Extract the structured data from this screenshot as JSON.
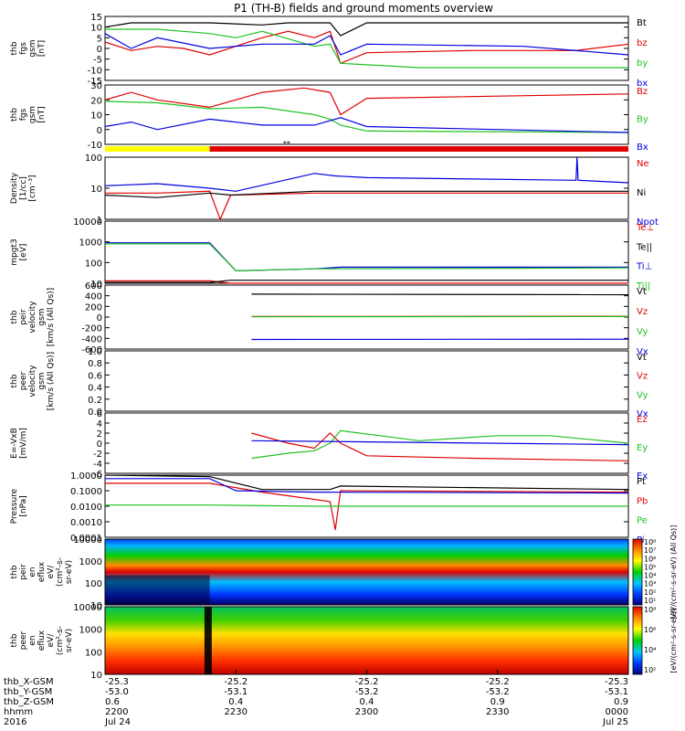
{
  "title": "P1 (TH-B) fields and ground moments overview",
  "colors": {
    "black": "#000000",
    "red": "#e00000",
    "green": "#22c322",
    "blue": "#0000e0",
    "yellow": "#ffff00"
  },
  "chart_data": {
    "type": "line",
    "title": "P1 (TH-B) fields and ground moments overview",
    "x_time_labels": [
      "2200",
      "2230",
      "2300",
      "2330",
      "0000"
    ],
    "x_date_labels": [
      "Jul 24",
      "",
      "",
      "",
      "Jul 25"
    ],
    "year_label": "2016",
    "orbit_rows": [
      {
        "label": "thb_X-GSM",
        "values": [
          "-25.3",
          "-25.2",
          "-25.2",
          "-25.2",
          "-25.3"
        ]
      },
      {
        "label": "thb_Y-GSM",
        "values": [
          "-53.0",
          "-53.1",
          "-53.2",
          "-53.2",
          "-53.1"
        ]
      },
      {
        "label": "thb_Z-GSM",
        "values": [
          "0.6",
          "0.4",
          "0.4",
          "0.9",
          "0.9"
        ]
      },
      {
        "label": "hhmm",
        "values": [
          "2200",
          "2230",
          "2300",
          "2330",
          "0000"
        ]
      },
      {
        "label": "2016",
        "values": [
          "Jul 24",
          "",
          "",
          "",
          "Jul 25"
        ]
      }
    ],
    "panels": [
      {
        "id": "fgs-gsm",
        "ylabel": [
          "thb",
          "fgs",
          "gsm",
          "[nT]"
        ],
        "yticks": [
          "15",
          "10",
          "5",
          "0",
          "-5",
          "-10",
          "-15"
        ],
        "legend": [
          "Bt",
          "bz",
          "by",
          "bx"
        ],
        "series": [
          {
            "name": "Bt",
            "x": [
              0,
              0.05,
              0.1,
              0.2,
              0.3,
              0.35,
              0.4,
              0.43,
              0.45,
              0.5,
              0.6,
              0.8,
              1.0
            ],
            "y": [
              10,
              12,
              12,
              12,
              11,
              12,
              12,
              12,
              6,
              12,
              12,
              12,
              12
            ]
          },
          {
            "name": "bz",
            "x": [
              0,
              0.05,
              0.1,
              0.15,
              0.2,
              0.3,
              0.35,
              0.4,
              0.43,
              0.45,
              0.5,
              0.7,
              0.9,
              1.0
            ],
            "y": [
              3,
              -1,
              1,
              0,
              -3,
              5,
              8,
              5,
              8,
              -7,
              -2,
              -1,
              -1,
              2
            ]
          },
          {
            "name": "by",
            "x": [
              0,
              0.05,
              0.1,
              0.2,
              0.25,
              0.3,
              0.4,
              0.43,
              0.45,
              0.6,
              0.8,
              1.0
            ],
            "y": [
              9,
              9,
              9,
              7,
              5,
              8,
              1,
              2,
              -7,
              -9,
              -9,
              -9
            ]
          },
          {
            "name": "bx",
            "x": [
              0,
              0.05,
              0.1,
              0.2,
              0.3,
              0.4,
              0.43,
              0.45,
              0.5,
              0.8,
              1.0
            ],
            "y": [
              7,
              0,
              5,
              0,
              2,
              2,
              6,
              -3,
              2,
              1,
              -3
            ]
          }
        ]
      },
      {
        "id": "fgs-gsm-2",
        "ylabel": [
          "thb",
          "fgs",
          "gsm",
          "[nT]"
        ],
        "yticks": [
          "30",
          "20",
          "10",
          "0",
          "-10"
        ],
        "legend": [
          "Bz",
          "By",
          "Bx"
        ],
        "series": [
          {
            "name": "Bz",
            "x": [
              0,
              0.05,
              0.1,
              0.2,
              0.3,
              0.38,
              0.43,
              0.45,
              0.5,
              1.0
            ],
            "y": [
              20,
              25,
              20,
              15,
              25,
              28,
              25,
              10,
              21,
              24
            ]
          },
          {
            "name": "By",
            "x": [
              0,
              0.1,
              0.2,
              0.3,
              0.4,
              0.43,
              0.45,
              0.5,
              1.0
            ],
            "y": [
              19,
              18,
              14,
              15,
              10,
              7,
              3,
              -1,
              -2
            ]
          },
          {
            "name": "Bx",
            "x": [
              0,
              0.05,
              0.1,
              0.2,
              0.3,
              0.4,
              0.45,
              0.5,
              1.0
            ],
            "y": [
              2,
              5,
              0,
              7,
              3,
              3,
              8,
              2,
              -2
            ]
          }
        ]
      },
      {
        "id": "density",
        "ylabel": [
          "Density",
          "[1/cc]",
          "[cm^-3]"
        ],
        "scale": "log",
        "yticks": [
          "100",
          "10",
          "1"
        ],
        "legend": [
          "Ne",
          "Ni",
          "Npot"
        ],
        "series": [
          {
            "name": "Ne",
            "x": [
              0,
              0.1,
              0.2,
              0.22,
              0.24,
              0.4,
              1.0
            ],
            "y": [
              7,
              7,
              8,
              1,
              6,
              7,
              7
            ]
          },
          {
            "name": "Ni",
            "x": [
              0,
              0.1,
              0.2,
              0.24,
              0.4,
              1.0
            ],
            "y": [
              6,
              5,
              7,
              6,
              8,
              8
            ]
          },
          {
            "name": "Npot",
            "x": [
              0,
              0.1,
              0.2,
              0.25,
              0.4,
              0.44,
              0.5,
              0.9,
              0.902,
              0.904,
              1.0
            ],
            "y": [
              12,
              14,
              10,
              8,
              30,
              25,
              22,
              18,
              180,
              18,
              15
            ]
          }
        ]
      },
      {
        "id": "temp",
        "ylabel": [
          "mpgt3",
          "[eV]"
        ],
        "scale": "log",
        "yticks": [
          "10000",
          "1000",
          "100",
          "10"
        ],
        "legend": [
          "Te⊥",
          "Te||",
          "Ti⊥",
          "Ti||"
        ],
        "series": [
          {
            "name": "Te⊥",
            "x": [
              0,
              0.2,
              0.24,
              1.0
            ],
            "y": [
              13,
              13,
              10,
              10
            ]
          },
          {
            "name": "Te||",
            "x": [
              0,
              0.2,
              0.24,
              0.4,
              1.0
            ],
            "y": [
              11,
              11,
              14,
              14,
              14
            ]
          },
          {
            "name": "Ti⊥",
            "x": [
              0,
              0.2,
              0.25,
              0.4,
              0.45,
              1.0
            ],
            "y": [
              900,
              900,
              40,
              50,
              60,
              60
            ]
          },
          {
            "name": "Ti||",
            "x": [
              0,
              0.2,
              0.25,
              0.4,
              1.0
            ],
            "y": [
              800,
              800,
              40,
              50,
              55
            ]
          }
        ]
      },
      {
        "id": "peir-velocity",
        "ylabel": [
          "thb",
          "peir",
          "velocity",
          "gsm",
          "[km/s (All Qs)]"
        ],
        "yticks": [
          "600",
          "400",
          "200",
          "0",
          "-200",
          "-400",
          "-600"
        ],
        "legend": [
          "Vt",
          "Vz",
          "Vy",
          "Vx"
        ],
        "series": [
          {
            "name": "Vt",
            "x": [
              0.28,
              1.0
            ],
            "y": [
              430,
              420
            ]
          },
          {
            "name": "Vz",
            "x": [
              0.28,
              1.0
            ],
            "y": [
              10,
              15
            ]
          },
          {
            "name": "Vy",
            "x": [
              0.28,
              1.0
            ],
            "y": [
              5,
              10
            ]
          },
          {
            "name": "Vx",
            "x": [
              0.28,
              1.0
            ],
            "y": [
              -420,
              -415
            ]
          }
        ]
      },
      {
        "id": "peer-velocity",
        "ylabel": [
          "thb",
          "peer",
          "velocity",
          "gsm",
          "[km/s (All Qs)]"
        ],
        "yticks": [
          "1.0",
          "0.8",
          "0.6",
          "0.4",
          "0.2",
          "0.0"
        ],
        "legend": [
          "Vt",
          "Vz",
          "Vy",
          "Vx"
        ],
        "series": []
      },
      {
        "id": "e-field",
        "ylabel": [
          "E=-VxB",
          "[mV/m]"
        ],
        "yticks": [
          "6",
          "4",
          "2",
          "0",
          "-2",
          "-4",
          "-6"
        ],
        "legend": [
          "Ez",
          "Ey",
          "Ex"
        ],
        "series": [
          {
            "name": "Ez",
            "x": [
              0.28,
              0.35,
              0.4,
              0.43,
              0.45,
              0.5,
              0.7,
              1.0
            ],
            "y": [
              2,
              0,
              -1,
              2,
              0,
              -2.5,
              -3,
              -3.5
            ]
          },
          {
            "name": "Ey",
            "x": [
              0.28,
              0.35,
              0.4,
              0.43,
              0.45,
              0.6,
              0.75,
              0.85,
              1.0
            ],
            "y": [
              -3,
              -2,
              -1.5,
              0,
              2.5,
              0.5,
              1.5,
              1.5,
              0
            ]
          },
          {
            "name": "Ex",
            "x": [
              0.28,
              1.0
            ],
            "y": [
              0.5,
              -0.3
            ]
          }
        ]
      },
      {
        "id": "pressure",
        "ylabel": [
          "Pressure",
          "[nPa]"
        ],
        "scale": "log",
        "yticks": [
          "1.0000",
          "0.1000",
          "0.0100",
          "0.0010",
          "0.0001"
        ],
        "legend": [
          "Pt",
          "Pb",
          "Pe",
          "Pi"
        ],
        "series": [
          {
            "name": "Pt",
            "x": [
              0,
              0.2,
              0.3,
              0.43,
              0.45,
              1.0
            ],
            "y": [
              1.0,
              0.8,
              0.12,
              0.12,
              0.2,
              0.12
            ]
          },
          {
            "name": "Pb",
            "x": [
              0,
              0.2,
              0.3,
              0.43,
              0.44,
              0.45,
              1.0
            ],
            "y": [
              0.3,
              0.3,
              0.08,
              0.02,
              0.0003,
              0.1,
              0.08
            ]
          },
          {
            "name": "Pe",
            "x": [
              0,
              0.2,
              0.4,
              1.0
            ],
            "y": [
              0.012,
              0.012,
              0.01,
              0.01
            ]
          },
          {
            "name": "Pi",
            "x": [
              0,
              0.2,
              0.25,
              0.4,
              1.0
            ],
            "y": [
              0.6,
              0.6,
              0.1,
              0.08,
              0.07
            ]
          }
        ]
      },
      {
        "id": "peir-en-eflux",
        "type": "heatmap",
        "ylabel": [
          "thb",
          "peir",
          "en",
          "eflux",
          "eV/",
          "(cm^2-s-",
          "sr-eV)"
        ],
        "yticks": [
          "10000",
          "1000",
          "100",
          "10"
        ],
        "colorbar_label": "[eV/(cm^2-s-sr-eV) (All Qs)]",
        "colorbar_ticks": [
          "10^8",
          "10^7",
          "10^6",
          "10^5",
          "10^4",
          "10^3",
          "10^2",
          "10^1"
        ]
      },
      {
        "id": "peer-en-eflux",
        "type": "heatmap",
        "ylabel": [
          "thb",
          "peer",
          "en",
          "eflux",
          "eV/",
          "(cm^2-s-",
          "sr-eV)"
        ],
        "yticks": [
          "10000",
          "1000",
          "100",
          "10"
        ],
        "colorbar_label": "[eV/(cm^2-s-sr-eV)]",
        "colorbar_ticks": [
          "10^8",
          "10^6",
          "10^4",
          "10^2"
        ]
      }
    ],
    "status_bar": {
      "segments": [
        {
          "x0": 0,
          "x1": 0.2,
          "color": "yellow"
        },
        {
          "x0": 0.2,
          "x1": 1.0,
          "color": "red"
        }
      ]
    }
  }
}
